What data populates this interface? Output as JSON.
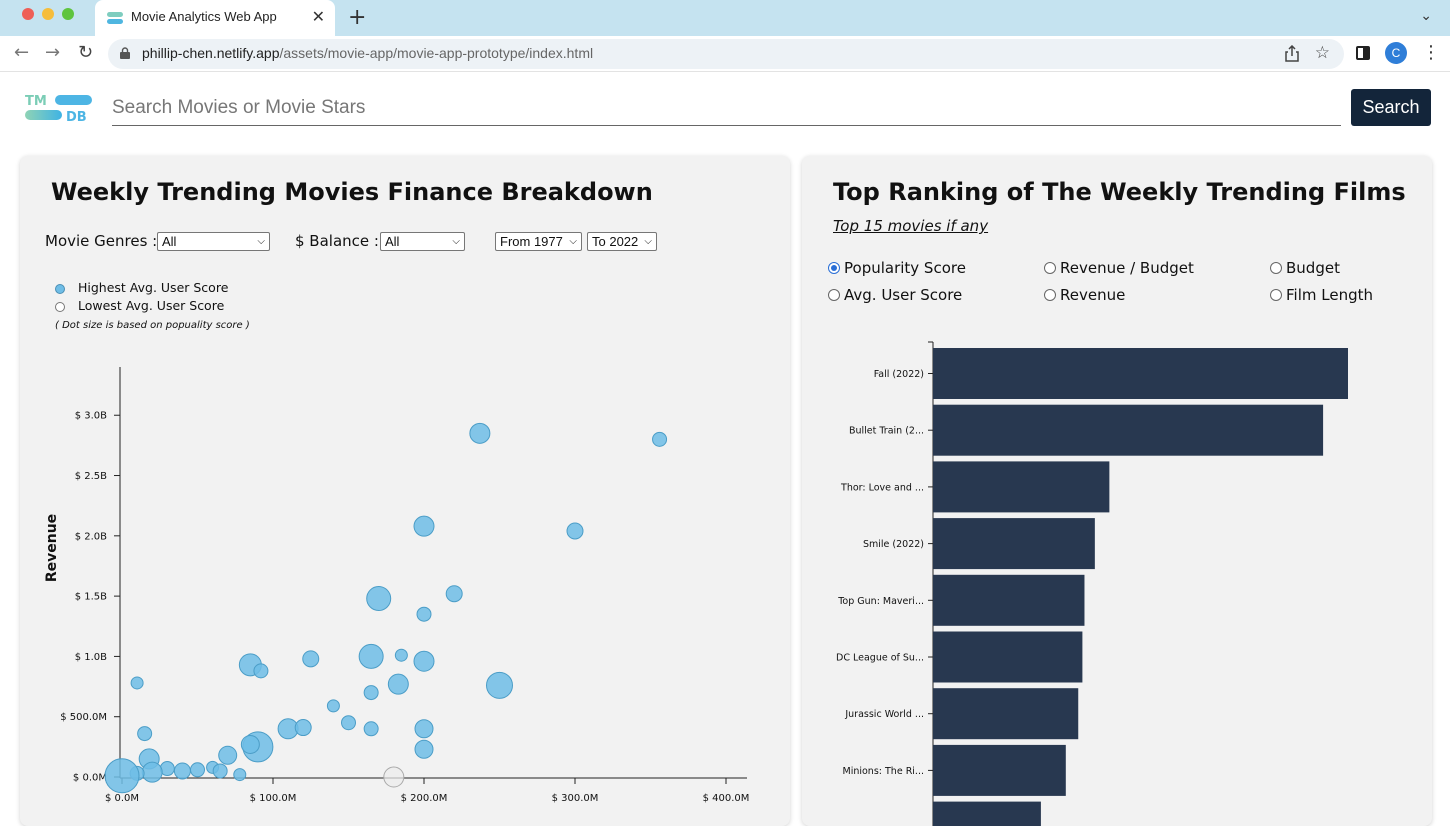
{
  "browser": {
    "tab_title": "Movie Analytics Web App",
    "url_host": "phillip-chen.netlify.app",
    "url_path": "/assets/movie-app/movie-app-prototype/index.html",
    "avatar_letter": "C"
  },
  "header": {
    "logo_text_top": "TM",
    "logo_text_bottom": "DB",
    "search_placeholder": "Search Movies or Movie Stars",
    "search_button": "Search"
  },
  "finance_panel": {
    "title": "Weekly Trending Movies Finance Breakdown",
    "genre_label": "Movie Genres :",
    "genre_value": "All",
    "balance_label": "$ Balance :",
    "balance_value": "All",
    "from_value": "From 1977",
    "to_value": "To 2022",
    "legend": [
      {
        "label": "Highest Avg. User Score",
        "color": "#6fbde6"
      },
      {
        "label": "Lowest Avg. User Score",
        "color": "#ffffff"
      }
    ],
    "legend_note": "( Dot size is based on popuality score )"
  },
  "ranking_panel": {
    "title": "Top Ranking of The Weekly Trending Films",
    "subtitle": "Top 15 movies if any",
    "options": [
      {
        "label": "Popularity Score",
        "checked": true
      },
      {
        "label": "Revenue / Budget",
        "checked": false
      },
      {
        "label": "Budget",
        "checked": false
      },
      {
        "label": "Avg. User Score",
        "checked": false
      },
      {
        "label": "Revenue",
        "checked": false
      },
      {
        "label": "Film Length",
        "checked": false
      }
    ]
  },
  "chart_data": [
    {
      "type": "scatter",
      "ylabel": "Revenue",
      "xlabel": "",
      "x_unit": "budget ($M)",
      "y_unit": "revenue ($B)",
      "xlim": [
        0,
        400
      ],
      "ylim": [
        0,
        3.4
      ],
      "x_ticks": [
        "$ 0.0M",
        "$ 100.0M",
        "$ 200.0M",
        "$ 300.0M",
        "$ 400.0M"
      ],
      "y_ticks": [
        "$ 0.0M",
        "$ 500.0M",
        "$ 1.0B",
        "$ 1.5B",
        "$ 2.0B",
        "$ 2.5B",
        "$ 3.0B"
      ],
      "colors": {
        "high": "#6fbde6",
        "low": "#ececec"
      },
      "points": [
        {
          "x": 237,
          "y": 2.85,
          "size": 10,
          "score": "high"
        },
        {
          "x": 356,
          "y": 2.8,
          "size": 7,
          "score": "high"
        },
        {
          "x": 200,
          "y": 2.08,
          "size": 10,
          "score": "high"
        },
        {
          "x": 300,
          "y": 2.04,
          "size": 8,
          "score": "high"
        },
        {
          "x": 170,
          "y": 1.48,
          "size": 12,
          "score": "high"
        },
        {
          "x": 220,
          "y": 1.52,
          "size": 8,
          "score": "high"
        },
        {
          "x": 200,
          "y": 1.35,
          "size": 7,
          "score": "high"
        },
        {
          "x": 165,
          "y": 1.0,
          "size": 12,
          "score": "high"
        },
        {
          "x": 200,
          "y": 0.96,
          "size": 10,
          "score": "high"
        },
        {
          "x": 185,
          "y": 1.01,
          "size": 6,
          "score": "high"
        },
        {
          "x": 125,
          "y": 0.98,
          "size": 8,
          "score": "high"
        },
        {
          "x": 85,
          "y": 0.93,
          "size": 11,
          "score": "high"
        },
        {
          "x": 92,
          "y": 0.88,
          "size": 7,
          "score": "high"
        },
        {
          "x": 10,
          "y": 0.78,
          "size": 6,
          "score": "high"
        },
        {
          "x": 165,
          "y": 0.7,
          "size": 7,
          "score": "high"
        },
        {
          "x": 183,
          "y": 0.77,
          "size": 10,
          "score": "high"
        },
        {
          "x": 250,
          "y": 0.76,
          "size": 13,
          "score": "high"
        },
        {
          "x": 140,
          "y": 0.59,
          "size": 6,
          "score": "high"
        },
        {
          "x": 150,
          "y": 0.45,
          "size": 7,
          "score": "high"
        },
        {
          "x": 165,
          "y": 0.4,
          "size": 7,
          "score": "high"
        },
        {
          "x": 110,
          "y": 0.4,
          "size": 10,
          "score": "high"
        },
        {
          "x": 120,
          "y": 0.41,
          "size": 8,
          "score": "high"
        },
        {
          "x": 200,
          "y": 0.4,
          "size": 9,
          "score": "high"
        },
        {
          "x": 200,
          "y": 0.23,
          "size": 9,
          "score": "high"
        },
        {
          "x": 15,
          "y": 0.36,
          "size": 7,
          "score": "high"
        },
        {
          "x": 90,
          "y": 0.25,
          "size": 15,
          "score": "high"
        },
        {
          "x": 85,
          "y": 0.27,
          "size": 9,
          "score": "high"
        },
        {
          "x": 70,
          "y": 0.18,
          "size": 9,
          "score": "high"
        },
        {
          "x": 18,
          "y": 0.15,
          "size": 10,
          "score": "high"
        },
        {
          "x": 60,
          "y": 0.08,
          "size": 6,
          "score": "high"
        },
        {
          "x": 50,
          "y": 0.06,
          "size": 7,
          "score": "high"
        },
        {
          "x": 40,
          "y": 0.05,
          "size": 8,
          "score": "high"
        },
        {
          "x": 30,
          "y": 0.07,
          "size": 7,
          "score": "high"
        },
        {
          "x": 20,
          "y": 0.04,
          "size": 10,
          "score": "high"
        },
        {
          "x": 10,
          "y": 0.03,
          "size": 7,
          "score": "high"
        },
        {
          "x": 0,
          "y": 0.01,
          "size": 17,
          "score": "high"
        },
        {
          "x": 78,
          "y": 0.02,
          "size": 6,
          "score": "high"
        },
        {
          "x": 65,
          "y": 0.05,
          "size": 7,
          "score": "high"
        },
        {
          "x": 180,
          "y": 0.0,
          "size": 10,
          "score": "low"
        }
      ]
    },
    {
      "type": "bar",
      "orientation": "horizontal",
      "bar_color": "#283850",
      "categories": [
        "Fall (2022)",
        "Bullet Train (2...",
        "Thor: Love and ...",
        "Smile (2022)",
        "Top Gun: Maveri...",
        "DC League of Su...",
        "Jurassic World ...",
        "Minions: The Ri...",
        ""
      ],
      "values": [
        100,
        94,
        42.5,
        39,
        36.5,
        36,
        35,
        32,
        26
      ],
      "xlim": [
        0,
        100
      ]
    }
  ]
}
